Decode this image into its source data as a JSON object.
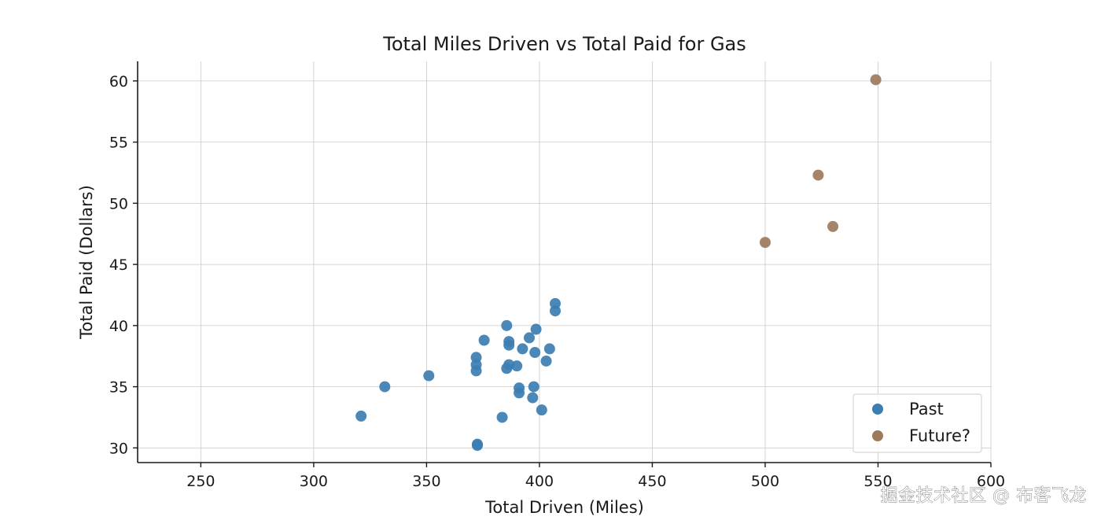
{
  "chart_data": {
    "type": "scatter",
    "title": "Total Miles Driven vs Total Paid for Gas",
    "xlabel": "Total Driven (Miles)",
    "ylabel": "Total Paid (Dollars)",
    "xlim": [
      222,
      600
    ],
    "ylim": [
      28.8,
      61.6
    ],
    "xticks": [
      250,
      300,
      350,
      400,
      450,
      500,
      550,
      600
    ],
    "yticks": [
      30,
      35,
      40,
      45,
      50,
      55,
      60
    ],
    "grid": true,
    "legend_position": "bottom-right",
    "series": [
      {
        "name": "Past",
        "color": "#3c7eb2",
        "points": [
          {
            "x": 321,
            "y": 32.6
          },
          {
            "x": 331.5,
            "y": 35.0
          },
          {
            "x": 351,
            "y": 35.9
          },
          {
            "x": 372,
            "y": 37.4
          },
          {
            "x": 372,
            "y": 36.8
          },
          {
            "x": 372,
            "y": 36.3
          },
          {
            "x": 372.5,
            "y": 30.3
          },
          {
            "x": 372.5,
            "y": 30.2
          },
          {
            "x": 375.5,
            "y": 38.8
          },
          {
            "x": 383.5,
            "y": 32.5
          },
          {
            "x": 385.5,
            "y": 40.0
          },
          {
            "x": 385.5,
            "y": 36.5
          },
          {
            "x": 386.5,
            "y": 38.7
          },
          {
            "x": 386.5,
            "y": 38.4
          },
          {
            "x": 386.5,
            "y": 36.8
          },
          {
            "x": 390,
            "y": 36.7
          },
          {
            "x": 391,
            "y": 34.9
          },
          {
            "x": 391,
            "y": 34.5
          },
          {
            "x": 392.5,
            "y": 38.1
          },
          {
            "x": 395.5,
            "y": 39.0
          },
          {
            "x": 397,
            "y": 34.1
          },
          {
            "x": 397.5,
            "y": 35.0
          },
          {
            "x": 398,
            "y": 37.8
          },
          {
            "x": 398.5,
            "y": 39.7
          },
          {
            "x": 401,
            "y": 33.1
          },
          {
            "x": 403,
            "y": 37.1
          },
          {
            "x": 404.5,
            "y": 38.1
          },
          {
            "x": 407,
            "y": 41.8
          },
          {
            "x": 407,
            "y": 41.2
          }
        ]
      },
      {
        "name": "Future?",
        "color": "#9e7a5c",
        "points": [
          {
            "x": 500,
            "y": 46.8
          },
          {
            "x": 523.5,
            "y": 52.3
          },
          {
            "x": 530,
            "y": 48.1
          },
          {
            "x": 549,
            "y": 60.1
          }
        ]
      }
    ]
  },
  "watermark": "掘金技术社区 @ 布客飞龙"
}
